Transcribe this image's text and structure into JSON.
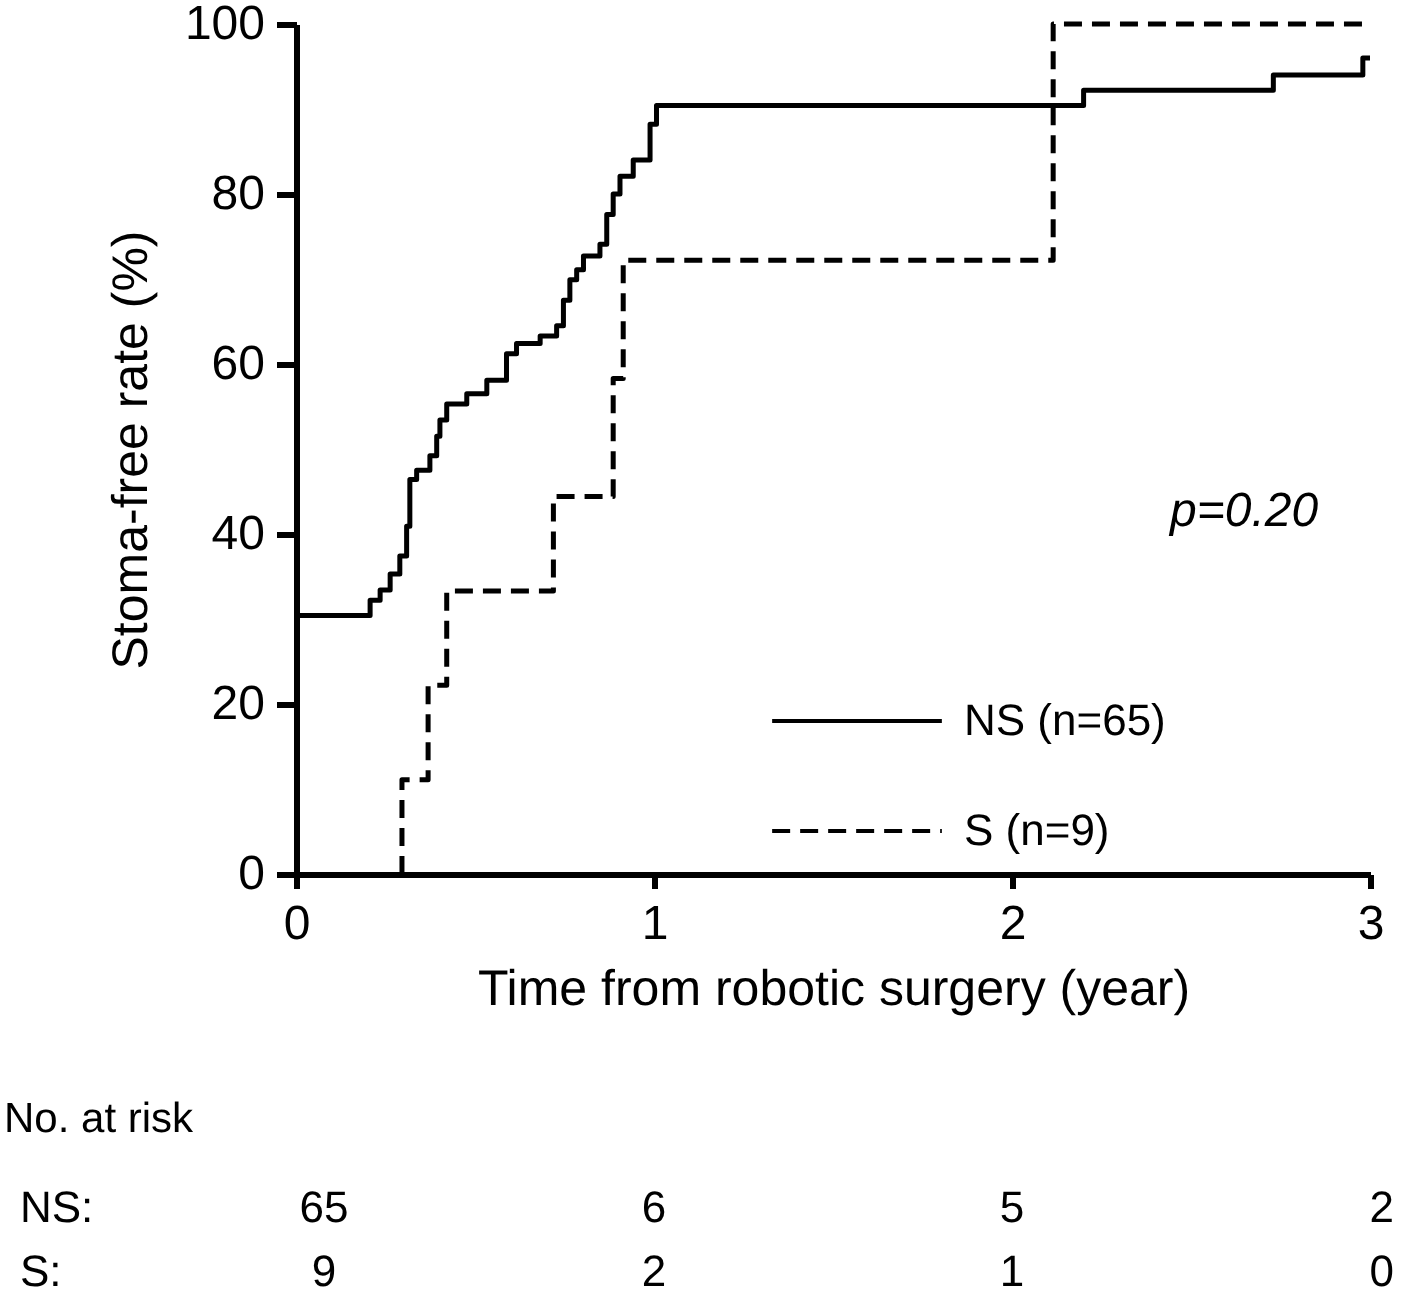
{
  "chart_data": {
    "type": "step",
    "xlabel": "Time from robotic surgery (year)",
    "ylabel": "Stoma-free rate (%)",
    "xlim": [
      0,
      3
    ],
    "ylim": [
      0,
      100
    ],
    "xticks": [
      0,
      1,
      2,
      3
    ],
    "yticks": [
      0,
      20,
      40,
      60,
      80,
      100
    ],
    "grid": false,
    "legend": "bottom right",
    "marker": "none",
    "series": [
      {
        "name": "NS (n=65)",
        "color": "#000000",
        "line_style": "solid",
        "x": [
          0,
          0.207,
          0.235,
          0.263,
          0.29,
          0.309,
          0.318,
          0.337,
          0.374,
          0.393,
          0.402,
          0.421,
          0.477,
          0.533,
          0.588,
          0.616,
          0.682,
          0.728,
          0.747,
          0.765,
          0.784,
          0.803,
          0.849,
          0.868,
          0.886,
          0.905,
          0.942,
          0.989,
          1.007,
          2.2,
          2.73,
          2.98,
          3.0
        ],
        "values": [
          30.4,
          32.2,
          33.4,
          35.3,
          37.4,
          40.9,
          46.4,
          47.5,
          49.2,
          51.5,
          53.4,
          55.3,
          56.5,
          58.1,
          61.2,
          62.4,
          63.3,
          64.5,
          67.5,
          69.9,
          71.1,
          72.7,
          74.1,
          77.6,
          80,
          82.1,
          84,
          88.2,
          90.4,
          92.2,
          94,
          96,
          96
        ]
      },
      {
        "name": "S (n=9)",
        "color": "#000000",
        "line_style": "dashed",
        "x": [
          0.296,
          0.296,
          0.369,
          0.421,
          0.719,
          0.886,
          0.914,
          2.115,
          3.0
        ],
        "values": [
          0,
          11.1,
          22.2,
          33.3,
          44.4,
          58.3,
          72.2,
          100,
          100
        ]
      }
    ],
    "annotations": [
      "p=0.20",
      "No. at risk",
      "NS:",
      "65",
      "6",
      "5",
      "2",
      "S:",
      "9",
      "2",
      "1",
      "0"
    ]
  }
}
